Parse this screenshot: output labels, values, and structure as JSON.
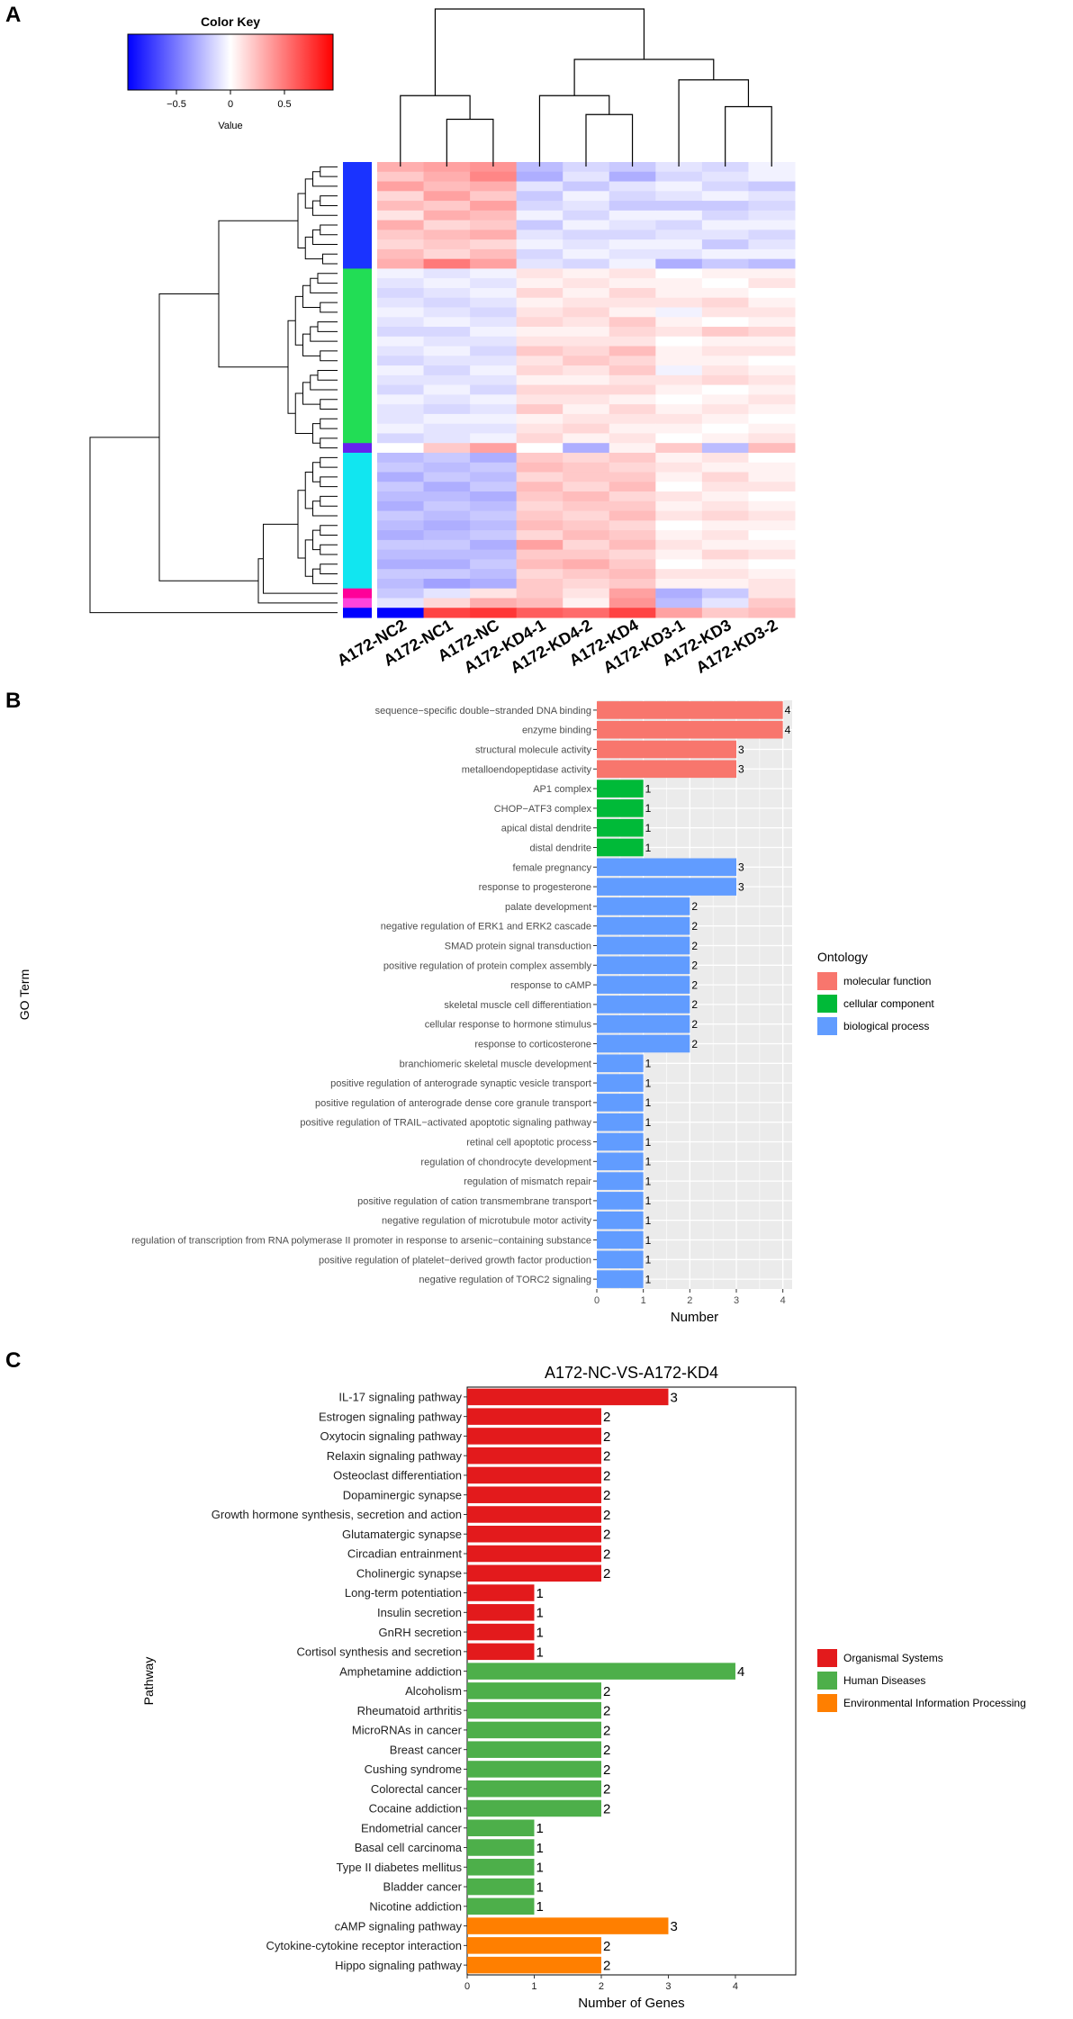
{
  "chart_data": [
    {
      "panel": "A",
      "type": "heatmap",
      "color_key": {
        "title": "Color Key",
        "xlabel": "Value",
        "ticks": [
          "−0.5",
          "0",
          "0.5"
        ],
        "tick_values": [
          -0.5,
          0,
          0.5
        ],
        "range": [
          -0.95,
          0.95
        ],
        "low_color": "#0000ff",
        "mid_color": "#ffffff",
        "high_color": "#ff0000"
      },
      "columns": [
        "A172-NC2",
        "A172-NC1",
        "A172-NC",
        "A172-KD4-1",
        "A172-KD4-2",
        "A172-KD4",
        "A172-KD3-1",
        "A172-KD3",
        "A172-KD3-2"
      ],
      "row_clusters": [
        {
          "name": "blue",
          "color": "#1a33ff",
          "rows": 11
        },
        {
          "name": "green",
          "color": "#22dd55",
          "rows": 18
        },
        {
          "name": "purple",
          "color": "#6622ee",
          "rows": 1
        },
        {
          "name": "cyan",
          "color": "#11e6f0",
          "rows": 14
        },
        {
          "name": "magenta",
          "color": "#ff0099",
          "rows": 1
        },
        {
          "name": "pink",
          "color": "#ff44dd",
          "rows": 1
        },
        {
          "name": "deep-blue",
          "color": "#0000ff",
          "rows": 1
        }
      ],
      "row_values": [
        [
          0.3,
          0.35,
          0.4,
          -0.25,
          -0.15,
          -0.2,
          -0.1,
          -0.15,
          -0.05
        ],
        [
          0.2,
          0.3,
          0.45,
          -0.3,
          -0.1,
          -0.3,
          -0.15,
          -0.1,
          -0.05
        ],
        [
          0.35,
          0.25,
          0.3,
          -0.1,
          -0.2,
          -0.1,
          -0.05,
          -0.15,
          -0.2
        ],
        [
          0.15,
          0.35,
          0.2,
          -0.2,
          -0.05,
          -0.15,
          -0.1,
          -0.05,
          -0.1
        ],
        [
          0.25,
          0.2,
          0.35,
          -0.15,
          -0.1,
          -0.2,
          -0.2,
          -0.2,
          -0.15
        ],
        [
          0.1,
          0.3,
          0.25,
          -0.05,
          -0.15,
          -0.05,
          -0.05,
          -0.15,
          -0.1
        ],
        [
          0.3,
          0.15,
          0.2,
          -0.2,
          -0.05,
          -0.1,
          -0.15,
          -0.05,
          -0.05
        ],
        [
          0.2,
          0.25,
          0.3,
          -0.1,
          -0.15,
          -0.15,
          -0.1,
          -0.1,
          -0.15
        ],
        [
          0.15,
          0.2,
          0.15,
          -0.05,
          -0.1,
          -0.05,
          -0.05,
          -0.2,
          -0.1
        ],
        [
          0.25,
          0.15,
          0.25,
          -0.15,
          -0.05,
          -0.1,
          -0.1,
          -0.05,
          -0.05
        ],
        [
          0.3,
          0.5,
          0.35,
          -0.1,
          -0.15,
          -0.05,
          -0.3,
          -0.2,
          -0.25
        ],
        [
          -0.05,
          -0.1,
          -0.05,
          0.1,
          0.05,
          0.1,
          0.0,
          0.05,
          0.05
        ],
        [
          -0.1,
          -0.05,
          -0.1,
          0.05,
          0.1,
          0.05,
          0.05,
          0.0,
          0.1
        ],
        [
          -0.15,
          -0.1,
          -0.05,
          0.15,
          0.05,
          0.15,
          0.05,
          0.05,
          0.0
        ],
        [
          -0.1,
          -0.15,
          -0.1,
          0.05,
          0.1,
          0.1,
          0.1,
          0.15,
          0.05
        ],
        [
          -0.05,
          -0.1,
          -0.15,
          0.1,
          0.15,
          0.05,
          -0.05,
          0.1,
          0.1
        ],
        [
          -0.1,
          -0.05,
          -0.1,
          0.15,
          0.1,
          0.2,
          0.05,
          0.0,
          0.05
        ],
        [
          -0.15,
          -0.15,
          -0.05,
          0.05,
          0.05,
          0.15,
          0.1,
          0.2,
          0.15
        ],
        [
          -0.05,
          -0.1,
          -0.1,
          0.1,
          0.1,
          0.1,
          0.0,
          0.05,
          0.05
        ],
        [
          -0.1,
          -0.05,
          -0.15,
          0.2,
          0.15,
          0.25,
          0.05,
          0.1,
          0.1
        ],
        [
          -0.15,
          -0.1,
          -0.1,
          0.1,
          0.2,
          0.15,
          0.05,
          0.05,
          0.0
        ],
        [
          -0.05,
          -0.15,
          -0.05,
          0.15,
          0.1,
          0.2,
          -0.05,
          0.1,
          0.05
        ],
        [
          -0.1,
          -0.1,
          -0.1,
          0.05,
          0.05,
          0.1,
          0.1,
          0.15,
          0.1
        ],
        [
          -0.15,
          -0.05,
          -0.15,
          0.15,
          0.15,
          0.15,
          0.05,
          0.0,
          0.05
        ],
        [
          -0.05,
          -0.1,
          -0.05,
          0.1,
          0.1,
          0.05,
          0.0,
          0.05,
          0.1
        ],
        [
          -0.1,
          -0.15,
          -0.1,
          0.2,
          0.05,
          0.15,
          0.05,
          0.1,
          0.05
        ],
        [
          -0.1,
          -0.05,
          -0.05,
          0.05,
          0.1,
          0.1,
          0.1,
          0.05,
          0.0
        ],
        [
          -0.05,
          -0.1,
          -0.1,
          0.1,
          0.15,
          0.05,
          0.05,
          0.0,
          0.05
        ],
        [
          -0.15,
          -0.1,
          -0.05,
          0.15,
          0.05,
          0.1,
          0.0,
          0.05,
          0.1
        ],
        [
          0.0,
          0.2,
          0.35,
          0.0,
          -0.3,
          0.05,
          0.2,
          -0.25,
          0.25
        ],
        [
          -0.25,
          -0.2,
          -0.3,
          0.2,
          0.15,
          0.2,
          0.05,
          0.1,
          0.0
        ],
        [
          -0.2,
          -0.25,
          -0.2,
          0.25,
          0.2,
          0.15,
          0.1,
          0.05,
          0.05
        ],
        [
          -0.3,
          -0.2,
          -0.25,
          0.15,
          0.2,
          0.2,
          0.05,
          0.15,
          0.05
        ],
        [
          -0.2,
          -0.3,
          -0.2,
          0.25,
          0.15,
          0.25,
          0.0,
          0.1,
          0.1
        ],
        [
          -0.25,
          -0.25,
          -0.3,
          0.2,
          0.25,
          0.15,
          0.1,
          0.05,
          0.0
        ],
        [
          -0.3,
          -0.2,
          -0.25,
          0.15,
          0.2,
          0.2,
          0.05,
          0.1,
          0.05
        ],
        [
          -0.2,
          -0.25,
          -0.2,
          0.2,
          0.15,
          0.25,
          0.1,
          0.15,
          0.1
        ],
        [
          -0.25,
          -0.3,
          -0.25,
          0.25,
          0.2,
          0.15,
          0.0,
          0.05,
          0.05
        ],
        [
          -0.3,
          -0.25,
          -0.2,
          0.15,
          0.25,
          0.2,
          0.05,
          0.1,
          0.0
        ],
        [
          -0.2,
          -0.2,
          -0.3,
          0.35,
          0.15,
          0.25,
          0.1,
          0.05,
          0.05
        ],
        [
          -0.25,
          -0.25,
          -0.25,
          0.2,
          0.2,
          0.15,
          0.05,
          0.15,
          0.1
        ],
        [
          -0.3,
          -0.3,
          -0.2,
          0.25,
          0.3,
          0.2,
          0.0,
          0.05,
          0.0
        ],
        [
          -0.2,
          -0.2,
          -0.25,
          0.15,
          0.2,
          0.25,
          0.1,
          0.1,
          0.05
        ],
        [
          -0.25,
          -0.35,
          -0.3,
          0.2,
          0.15,
          0.2,
          0.05,
          0.05,
          0.1
        ],
        [
          -0.2,
          -0.1,
          0.1,
          0.2,
          0.1,
          0.35,
          -0.3,
          -0.2,
          0.1
        ],
        [
          -0.1,
          0.15,
          0.3,
          0.25,
          0.05,
          0.4,
          -0.25,
          -0.1,
          0.2
        ],
        [
          -0.95,
          0.7,
          0.75,
          0.6,
          0.55,
          0.7,
          0.35,
          0.2,
          0.25
        ]
      ]
    },
    {
      "panel": "B",
      "type": "bar",
      "orientation": "horizontal",
      "xlabel": "Number",
      "ylabel": "GO Term",
      "xlim": [
        0,
        4.2
      ],
      "xticks": [
        "0",
        "1",
        "2",
        "3",
        "4"
      ],
      "legend_title": "Ontology",
      "legend_position": "right",
      "legend": [
        {
          "name": "molecular function",
          "color": "#f8766d"
        },
        {
          "name": "cellular component",
          "color": "#00ba38"
        },
        {
          "name": "biological process",
          "color": "#619cff"
        }
      ],
      "bars": [
        {
          "label": "sequence−specific double−stranded DNA binding",
          "value": 4,
          "group": 0
        },
        {
          "label": "enzyme binding",
          "value": 4,
          "group": 0
        },
        {
          "label": "structural molecule activity",
          "value": 3,
          "group": 0
        },
        {
          "label": "metalloendopeptidase activity",
          "value": 3,
          "group": 0
        },
        {
          "label": "AP1 complex",
          "value": 1,
          "group": 1
        },
        {
          "label": "CHOP−ATF3 complex",
          "value": 1,
          "group": 1
        },
        {
          "label": "apical distal dendrite",
          "value": 1,
          "group": 1
        },
        {
          "label": "distal dendrite",
          "value": 1,
          "group": 1
        },
        {
          "label": "female pregnancy",
          "value": 3,
          "group": 2
        },
        {
          "label": "response to progesterone",
          "value": 3,
          "group": 2
        },
        {
          "label": "palate development",
          "value": 2,
          "group": 2
        },
        {
          "label": "negative regulation of ERK1 and ERK2 cascade",
          "value": 2,
          "group": 2
        },
        {
          "label": "SMAD protein signal transduction",
          "value": 2,
          "group": 2
        },
        {
          "label": "positive regulation of protein complex assembly",
          "value": 2,
          "group": 2
        },
        {
          "label": "response to cAMP",
          "value": 2,
          "group": 2
        },
        {
          "label": "skeletal muscle cell differentiation",
          "value": 2,
          "group": 2
        },
        {
          "label": "cellular response to hormone stimulus",
          "value": 2,
          "group": 2
        },
        {
          "label": "response to corticosterone",
          "value": 2,
          "group": 2
        },
        {
          "label": "branchiomeric skeletal muscle development",
          "value": 1,
          "group": 2
        },
        {
          "label": "positive regulation of anterograde synaptic vesicle transport",
          "value": 1,
          "group": 2
        },
        {
          "label": "positive regulation of anterograde dense core granule transport",
          "value": 1,
          "group": 2
        },
        {
          "label": "positive regulation of TRAIL−activated apoptotic signaling pathway",
          "value": 1,
          "group": 2
        },
        {
          "label": "retinal cell apoptotic process",
          "value": 1,
          "group": 2
        },
        {
          "label": "regulation of chondrocyte development",
          "value": 1,
          "group": 2
        },
        {
          "label": "regulation of mismatch repair",
          "value": 1,
          "group": 2
        },
        {
          "label": "positive regulation of cation transmembrane transport",
          "value": 1,
          "group": 2
        },
        {
          "label": "negative regulation of microtubule motor activity",
          "value": 1,
          "group": 2
        },
        {
          "label": "regulation of transcription from RNA polymerase II promoter in response to arsenic−containing substance",
          "value": 1,
          "group": 2
        },
        {
          "label": "positive regulation of platelet−derived growth factor production",
          "value": 1,
          "group": 2
        },
        {
          "label": "negative regulation of TORC2 signaling",
          "value": 1,
          "group": 2
        }
      ]
    },
    {
      "panel": "C",
      "type": "bar",
      "orientation": "horizontal",
      "title": "A172-NC-VS-A172-KD4",
      "xlabel": "Number of Genes",
      "ylabel": "Pathway",
      "xlim": [
        0,
        4.9
      ],
      "xticks": [
        "0",
        "1",
        "2",
        "3",
        "4"
      ],
      "legend_position": "right",
      "legend": [
        {
          "name": "Organismal Systems",
          "color": "#e31a1c"
        },
        {
          "name": "Human Diseases",
          "color": "#4daf4a"
        },
        {
          "name": "Environmental Information Processing",
          "color": "#ff7f00"
        }
      ],
      "bars": [
        {
          "label": "IL-17 signaling pathway",
          "value": 3,
          "group": 0
        },
        {
          "label": "Estrogen signaling pathway",
          "value": 2,
          "group": 0
        },
        {
          "label": "Oxytocin signaling pathway",
          "value": 2,
          "group": 0
        },
        {
          "label": "Relaxin signaling pathway",
          "value": 2,
          "group": 0
        },
        {
          "label": "Osteoclast differentiation",
          "value": 2,
          "group": 0
        },
        {
          "label": "Dopaminergic synapse",
          "value": 2,
          "group": 0
        },
        {
          "label": "Growth hormone synthesis, secretion and action",
          "value": 2,
          "group": 0
        },
        {
          "label": "Glutamatergic synapse",
          "value": 2,
          "group": 0
        },
        {
          "label": "Circadian entrainment",
          "value": 2,
          "group": 0
        },
        {
          "label": "Cholinergic synapse",
          "value": 2,
          "group": 0
        },
        {
          "label": "Long-term potentiation",
          "value": 1,
          "group": 0
        },
        {
          "label": "Insulin secretion",
          "value": 1,
          "group": 0
        },
        {
          "label": "GnRH secretion",
          "value": 1,
          "group": 0
        },
        {
          "label": "Cortisol synthesis and secretion",
          "value": 1,
          "group": 0
        },
        {
          "label": "Amphetamine addiction",
          "value": 4,
          "group": 1
        },
        {
          "label": "Alcoholism",
          "value": 2,
          "group": 1
        },
        {
          "label": "Rheumatoid arthritis",
          "value": 2,
          "group": 1
        },
        {
          "label": "MicroRNAs in cancer",
          "value": 2,
          "group": 1
        },
        {
          "label": "Breast cancer",
          "value": 2,
          "group": 1
        },
        {
          "label": "Cushing syndrome",
          "value": 2,
          "group": 1
        },
        {
          "label": "Colorectal cancer",
          "value": 2,
          "group": 1
        },
        {
          "label": "Cocaine addiction",
          "value": 2,
          "group": 1
        },
        {
          "label": "Endometrial cancer",
          "value": 1,
          "group": 1
        },
        {
          "label": "Basal cell carcinoma",
          "value": 1,
          "group": 1
        },
        {
          "label": "Type II diabetes mellitus",
          "value": 1,
          "group": 1
        },
        {
          "label": "Bladder cancer",
          "value": 1,
          "group": 1
        },
        {
          "label": "Nicotine addiction",
          "value": 1,
          "group": 1
        },
        {
          "label": "cAMP signaling pathway",
          "value": 3,
          "group": 2
        },
        {
          "label": "Cytokine-cytokine receptor interaction",
          "value": 2,
          "group": 2
        },
        {
          "label": "Hippo signaling pathway",
          "value": 2,
          "group": 2
        }
      ]
    }
  ],
  "panel_labels": [
    "A",
    "B",
    "C"
  ]
}
